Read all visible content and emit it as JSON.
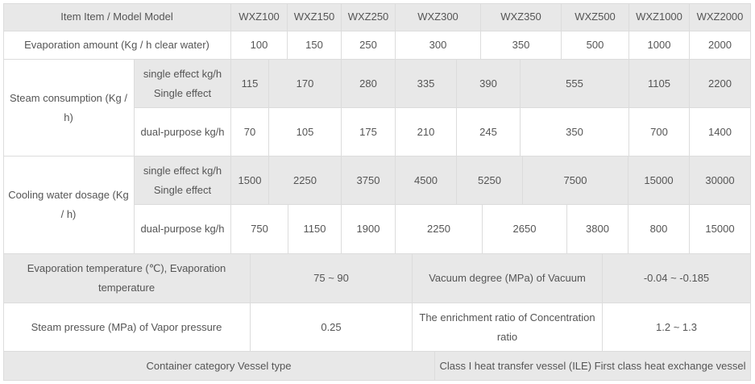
{
  "header": {
    "item": "Item Item / Model Model",
    "models": [
      "WXZ100",
      "WXZ150",
      "WXZ250",
      "WXZ300",
      "WXZ350",
      "WXZ500",
      "WXZ1000",
      "WXZ2000"
    ]
  },
  "evaporation": {
    "label": "Evaporation amount (Kg / h clear water)",
    "values": [
      "100",
      "150",
      "250",
      "300",
      "350",
      "500",
      "1000",
      "2000"
    ]
  },
  "steam": {
    "label": "Steam consumption (Kg / h)",
    "single_label": "single effect kg/h Single effect",
    "single": [
      "115",
      "170",
      "280",
      "335",
      "390",
      "555",
      "1105",
      "2200"
    ],
    "dual_label": "dual-purpose kg/h",
    "dual": [
      "70",
      "105",
      "175",
      "210",
      "245",
      "350",
      "700",
      "1400"
    ]
  },
  "cooling": {
    "label": "Cooling water dosage (Kg / h)",
    "single_label": "single effect kg/h Single effect",
    "single": [
      "1500",
      "2250",
      "3750",
      "4500",
      "5250",
      "7500",
      "15000",
      "30000"
    ],
    "dual_label": "dual-purpose kg/h",
    "dual": [
      "750",
      "1150",
      "1900",
      "2250",
      "2650",
      "3800",
      "800",
      "15000"
    ]
  },
  "evap_temp": {
    "label": "Evaporation temperature (℃), Evaporation temperature",
    "value": "75 ~ 90",
    "vacuum_label": "Vacuum degree (MPa) of Vacuum",
    "vacuum_value": "-0.04 ~ -0.185"
  },
  "steam_pressure": {
    "label": "Steam pressure (MPa) of Vapor pressure",
    "value": "0.25",
    "ratio_label": "The enrichment ratio of Concentration ratio",
    "ratio_value": "1.2 ~ 1.3"
  },
  "vessel": {
    "label": "Container category Vessel type",
    "value": "Class I heat transfer vessel (ILE) First class heat exchange vessel"
  },
  "colors": {
    "header_bg": "#e8e8e8",
    "border": "#dcdcdc",
    "text": "#555555"
  }
}
